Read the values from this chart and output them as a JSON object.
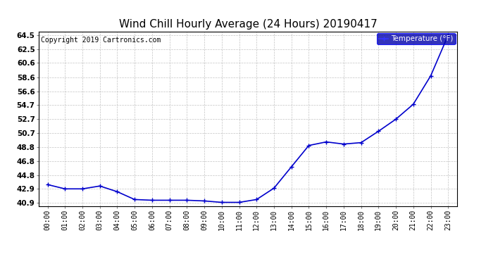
{
  "title": "Wind Chill Hourly Average (24 Hours) 20190417",
  "copyright": "Copyright 2019 Cartronics.com",
  "legend_label": "Temperature (°F)",
  "x_labels": [
    "00:00",
    "01:00",
    "02:00",
    "03:00",
    "04:00",
    "05:00",
    "06:00",
    "07:00",
    "08:00",
    "09:00",
    "10:00",
    "11:00",
    "12:00",
    "13:00",
    "14:00",
    "15:00",
    "16:00",
    "17:00",
    "18:00",
    "19:00",
    "20:00",
    "21:00",
    "22:00",
    "23:00"
  ],
  "y_values": [
    43.5,
    42.9,
    42.9,
    43.3,
    42.5,
    41.4,
    41.3,
    41.3,
    41.3,
    41.2,
    41.0,
    41.0,
    41.4,
    43.0,
    46.0,
    49.0,
    49.5,
    49.2,
    49.4,
    51.0,
    52.7,
    54.8,
    58.8,
    64.5
  ],
  "ylim_min": 40.5,
  "ylim_max": 65.0,
  "yticks": [
    40.9,
    42.9,
    44.8,
    46.8,
    48.8,
    50.7,
    52.7,
    54.7,
    56.6,
    58.6,
    60.6,
    62.5,
    64.5
  ],
  "line_color": "#0000CC",
  "marker_color": "#0000CC",
  "bg_color": "#ffffff",
  "plot_bg_color": "#ffffff",
  "grid_color": "#aaaaaa",
  "title_fontsize": 11,
  "copyright_fontsize": 7,
  "legend_bg_color": "#0000AA",
  "legend_text_color": "#ffffff"
}
